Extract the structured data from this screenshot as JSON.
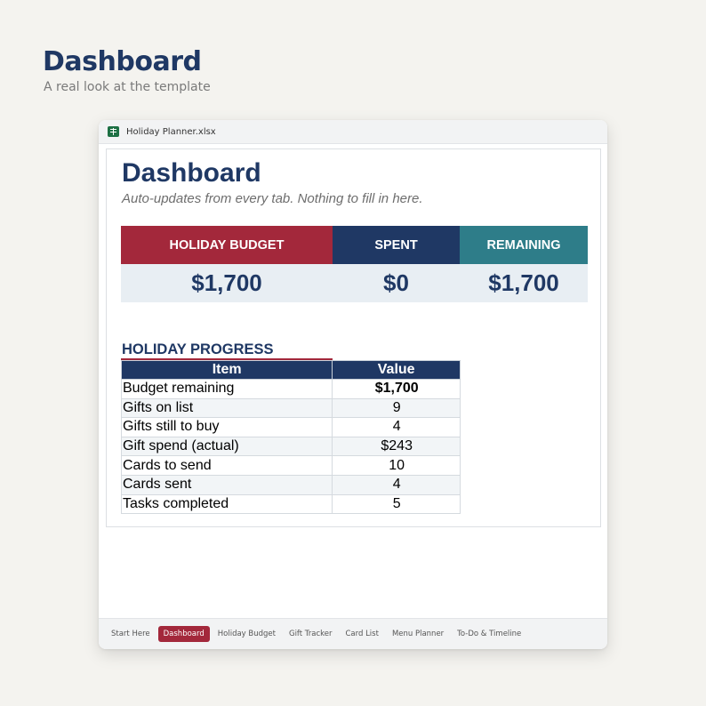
{
  "page": {
    "title": "Dashboard",
    "subtitle": "A real look at the template"
  },
  "window": {
    "file_name": "Holiday Planner.xlsx",
    "file_icon": "spreadsheet-icon"
  },
  "sheet": {
    "title": "Dashboard",
    "subtitle": "Auto-updates from every tab. Nothing to fill in here.",
    "kpis": [
      {
        "label": "HOLIDAY BUDGET",
        "value": "$1,700",
        "color": "#a3283b"
      },
      {
        "label": "SPENT",
        "value": "$0",
        "color": "#1f3864"
      },
      {
        "label": "REMAINING",
        "value": "$1,700",
        "color": "#2e7d89"
      }
    ],
    "progress": {
      "title": "HOLIDAY PROGRESS",
      "headers": [
        "Item",
        "Value"
      ],
      "rows": [
        {
          "item": "Budget remaining",
          "value": "$1,700"
        },
        {
          "item": "Gifts on list",
          "value": "9"
        },
        {
          "item": "Gifts still to buy",
          "value": "4"
        },
        {
          "item": "Gift spend (actual)",
          "value": "$243"
        },
        {
          "item": "Cards to send",
          "value": "10"
        },
        {
          "item": "Cards sent",
          "value": "4"
        },
        {
          "item": "Tasks completed",
          "value": "5"
        }
      ]
    }
  },
  "tabs": [
    {
      "label": "Start Here",
      "active": false
    },
    {
      "label": "Dashboard",
      "active": true
    },
    {
      "label": "Holiday Budget",
      "active": false
    },
    {
      "label": "Gift Tracker",
      "active": false
    },
    {
      "label": "Card List",
      "active": false
    },
    {
      "label": "Menu Planner",
      "active": false
    },
    {
      "label": "To-Do & Timeline",
      "active": false
    }
  ],
  "colors": {
    "navy": "#1f3864",
    "crimson": "#a3283b",
    "teal": "#2e7d89"
  }
}
